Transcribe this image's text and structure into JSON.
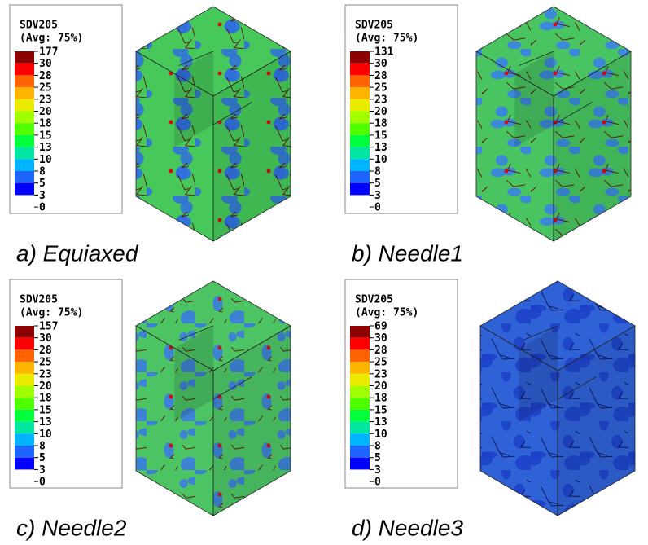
{
  "colorbar_colors": [
    "#8c0000",
    "#ff0000",
    "#ff6400",
    "#ffb400",
    "#ebeb00",
    "#a0ff00",
    "#50ff00",
    "#00ff3c",
    "#00e6a0",
    "#00b4ff",
    "#1e64ff",
    "#0000ff"
  ],
  "panels": [
    {
      "legend_title": "SDV205",
      "legend_subtitle": "(Avg: 75%)",
      "levels": [
        177,
        30,
        28,
        25,
        23,
        20,
        18,
        15,
        13,
        10,
        8,
        5,
        3,
        0
      ],
      "caption": "a) Equiaxed"
    },
    {
      "legend_title": "SDV205",
      "legend_subtitle": "(Avg: 75%)",
      "levels": [
        131,
        30,
        28,
        25,
        23,
        20,
        18,
        15,
        13,
        10,
        8,
        5,
        3,
        0
      ],
      "caption": "b) Needle1"
    },
    {
      "legend_title": "SDV205",
      "legend_subtitle": "(Avg: 75%)",
      "levels": [
        157,
        30,
        28,
        25,
        23,
        20,
        18,
        15,
        13,
        10,
        8,
        5,
        3,
        0
      ],
      "caption": "c) Needle2"
    },
    {
      "legend_title": "SDV205",
      "legend_subtitle": "(Avg: 75%)",
      "levels": [
        69,
        30,
        28,
        25,
        23,
        20,
        18,
        15,
        13,
        10,
        8,
        5,
        3,
        0
      ],
      "caption": "d) Needle3"
    }
  ]
}
